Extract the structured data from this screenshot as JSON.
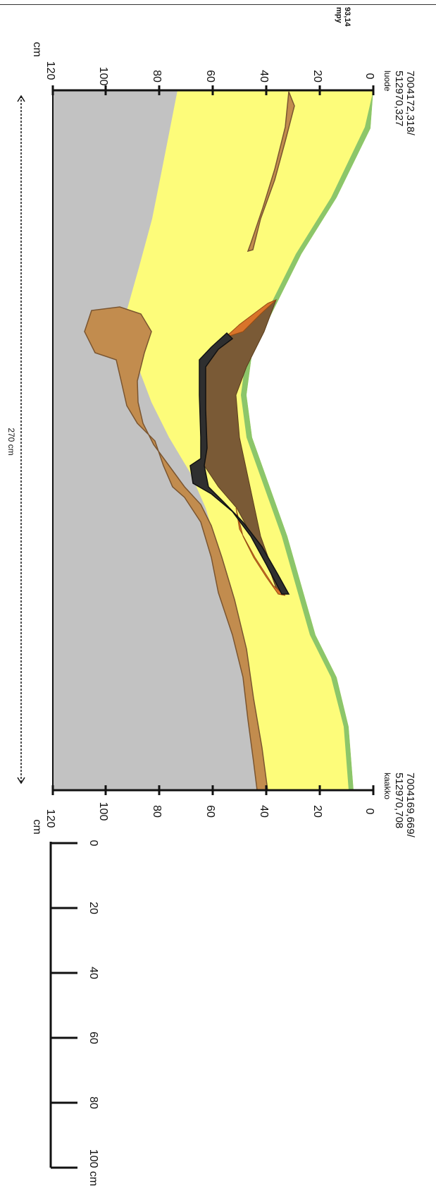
{
  "profile": {
    "start_coord": "7004172,318/\n512970,327",
    "start_direction": "luode",
    "end_coord": "7004169,669/\n512970,708",
    "end_direction": "kaakko",
    "elevation_label": "93,14\nmpy",
    "width_label": "270 cm",
    "depth_unit": "cm",
    "depth_ticks": [
      "0",
      "20",
      "40",
      "60",
      "80",
      "100",
      "120"
    ]
  },
  "scale_bar": {
    "ticks": [
      "0",
      "20",
      "40",
      "60",
      "80",
      "100 cm"
    ]
  },
  "colors": {
    "grass": "#8cc66a",
    "sand": "#fdfc7a",
    "clay": "#c28c4e",
    "subsoil": "#c2c2c2",
    "dark_fill": "#7a5a36",
    "charcoal": "#2f2f2f",
    "rust": "#d9742a"
  }
}
